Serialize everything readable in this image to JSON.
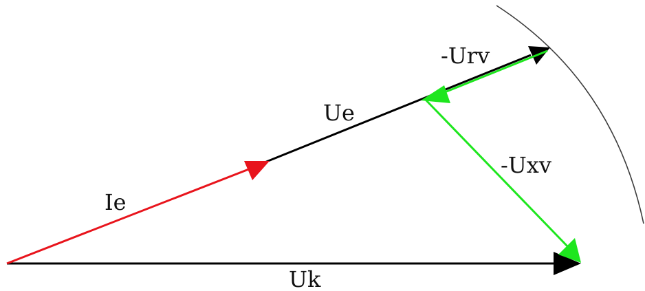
{
  "diagram": {
    "labels": {
      "ie": "Ie",
      "ue": "Ue",
      "urv": "-Urv",
      "uxv": "-Uxv",
      "uk": "Uk"
    },
    "colors": {
      "current": "#e8141c",
      "voltage": "#000000",
      "drop": "#1ee61e",
      "arc": "#3c3c3c"
    }
  }
}
